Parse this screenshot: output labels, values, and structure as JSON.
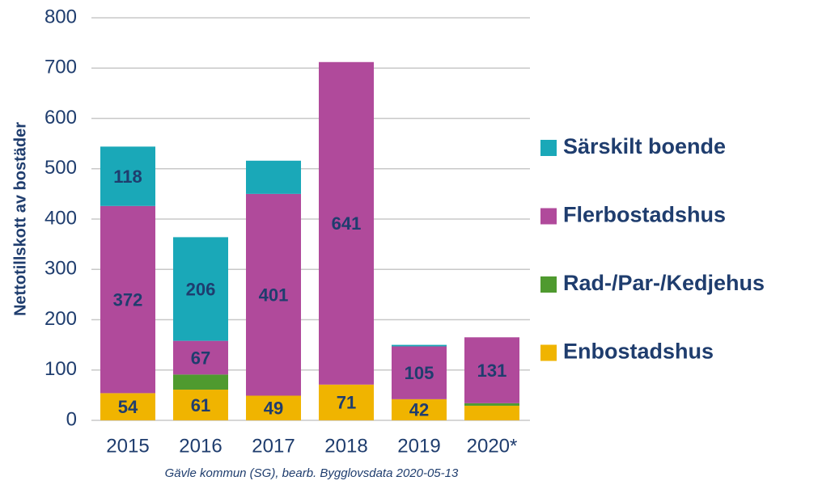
{
  "chart_data": {
    "type": "stacked_bar",
    "y_label": "Nettotillskott av bostäder",
    "source": "Gävle kommun (SG), bearb. Bygglovsdata 2020-05-13",
    "categories": [
      "2015",
      "2016",
      "2017",
      "2018",
      "2019",
      "2020*"
    ],
    "series": [
      {
        "name": "Enbostadshus",
        "color": "#f0b400",
        "values": [
          54,
          61,
          49,
          71,
          42,
          29
        ],
        "value_labels": [
          "54",
          "61",
          "49",
          "71",
          "42",
          null
        ]
      },
      {
        "name": "Rad-/Par-/Kedjehus",
        "color": "#4f9a2f",
        "values": [
          0,
          30,
          0,
          0,
          0,
          5
        ],
        "value_labels": [
          null,
          null,
          null,
          null,
          null,
          null
        ]
      },
      {
        "name": "Flerbostadshus",
        "color": "#b04a9b",
        "values": [
          372,
          67,
          401,
          641,
          105,
          131
        ],
        "value_labels": [
          "372",
          "67",
          "401",
          "641",
          "105",
          "131"
        ]
      },
      {
        "name": "Särskilt boende",
        "color": "#1aa8b8",
        "values": [
          118,
          206,
          66,
          0,
          3,
          0
        ],
        "value_labels": [
          "118",
          "206",
          null,
          null,
          null,
          null
        ]
      }
    ],
    "ylim": [
      0,
      800
    ],
    "yticks": [
      0,
      100,
      200,
      300,
      400,
      500,
      600,
      700,
      800
    ],
    "grid": true,
    "legend": "right"
  }
}
